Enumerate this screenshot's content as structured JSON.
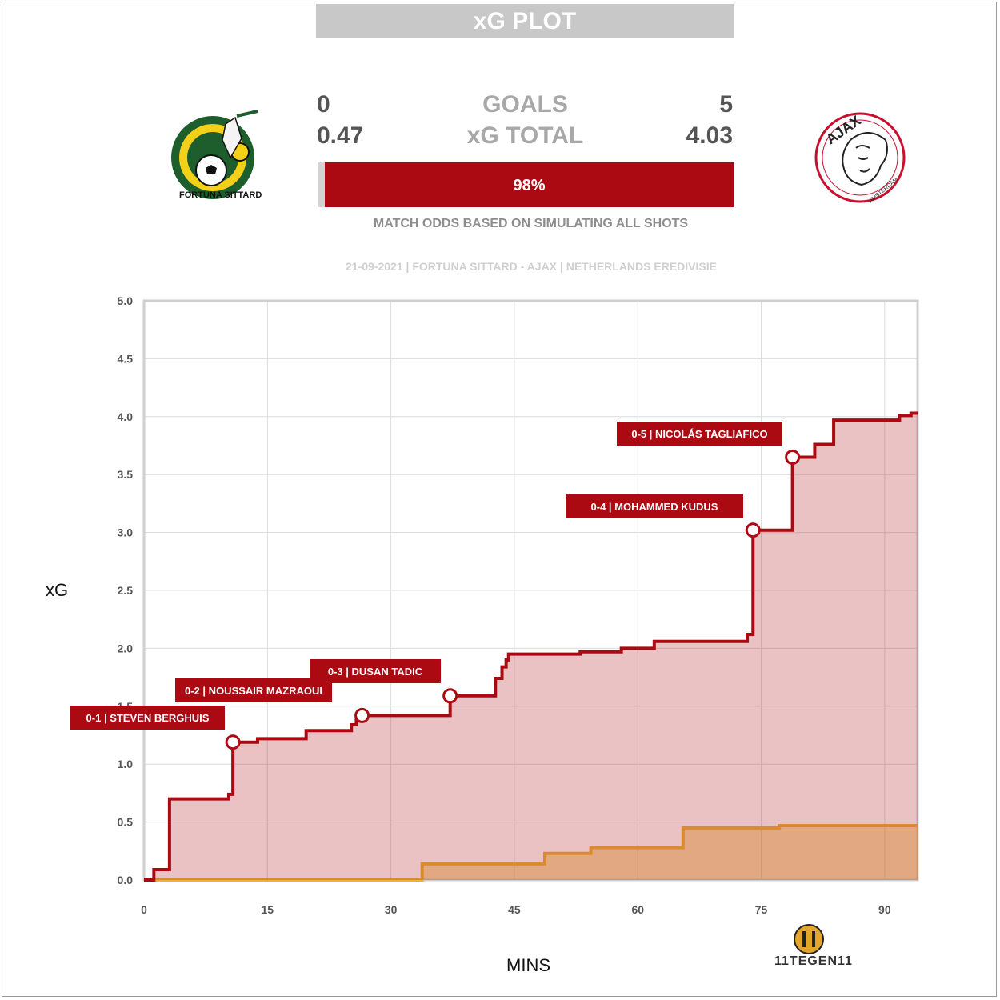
{
  "header": {
    "title": "xG PLOT"
  },
  "home": {
    "name": "Fortuna Sittard",
    "goals": "0",
    "xg": "0.47",
    "logo_text": "FORTUNA SITTARD",
    "color": "#e8b43c"
  },
  "away": {
    "name": "Ajax",
    "goals": "5",
    "xg": "4.03",
    "logo_text": "AJAX",
    "logo_subtext": "AMSTERDAM",
    "color": "#ac0a12"
  },
  "stats": {
    "goals_label": "GOALS",
    "xg_label": "xG TOTAL"
  },
  "odds": {
    "win_pct_label": "98%",
    "away_win_fraction": 0.98,
    "caption": "MATCH ODDS BASED ON SIMULATING ALL SHOTS"
  },
  "match_info": "21-09-2021 | FORTUNA SITTARD - AJAX | NETHERLANDS EREDIVISIE",
  "brand": {
    "text": "11TEGEN11",
    "icon": "11tegen11-logo-icon"
  },
  "chart_data": {
    "type": "area",
    "title": "",
    "xlabel": "MINS",
    "ylabel": "xG",
    "xlim": [
      0,
      94
    ],
    "ylim": [
      0,
      5.0
    ],
    "xticks": [
      0,
      15,
      30,
      45,
      60,
      75,
      90
    ],
    "yticks": [
      "0.0",
      "0.5",
      "1.0",
      "1.5",
      "2.0",
      "2.5",
      "3.0",
      "3.5",
      "4.0",
      "4.5",
      "5.0"
    ],
    "grid": true,
    "series": [
      {
        "name": "Ajax",
        "color": "#ac0a12",
        "x": [
          0,
          1.2,
          3.1,
          10.3,
          10.8,
          13.8,
          19.7,
          25.2,
          25.8,
          26.5,
          37.2,
          42.7,
          43.5,
          44.0,
          44.3,
          53.0,
          58.0,
          62.0,
          73.3,
          74.0,
          78.8,
          81.5,
          83.8,
          91.8,
          93.2,
          94.0
        ],
        "y": [
          0,
          0.09,
          0.7,
          0.74,
          1.19,
          1.22,
          1.29,
          1.34,
          1.38,
          1.42,
          1.59,
          1.74,
          1.84,
          1.9,
          1.95,
          1.97,
          2.0,
          2.06,
          2.12,
          3.02,
          3.65,
          3.76,
          3.97,
          4.01,
          4.03,
          4.03
        ]
      },
      {
        "name": "Fortuna Sittard",
        "color": "#e8b43c",
        "x": [
          0,
          33.0,
          33.8,
          48.7,
          54.3,
          65.5,
          77.2,
          94.0
        ],
        "y": [
          0,
          0.0,
          0.14,
          0.23,
          0.28,
          0.45,
          0.47,
          0.47
        ]
      }
    ],
    "annotations": [
      {
        "label": "0-1 | STEVEN BERGHUIS",
        "x": 10.8,
        "y": 1.19
      },
      {
        "label": "0-2 | NOUSSAIR MAZRAOUI",
        "x": 26.5,
        "y": 1.42
      },
      {
        "label": "0-3 | DUSAN TADIC",
        "x": 37.2,
        "y": 1.59
      },
      {
        "label": "0-4 | MOHAMMED KUDUS",
        "x": 74.0,
        "y": 3.02
      },
      {
        "label": "0-5 | NICOLÁS TAGLIAFICO",
        "x": 78.8,
        "y": 3.65
      }
    ]
  }
}
